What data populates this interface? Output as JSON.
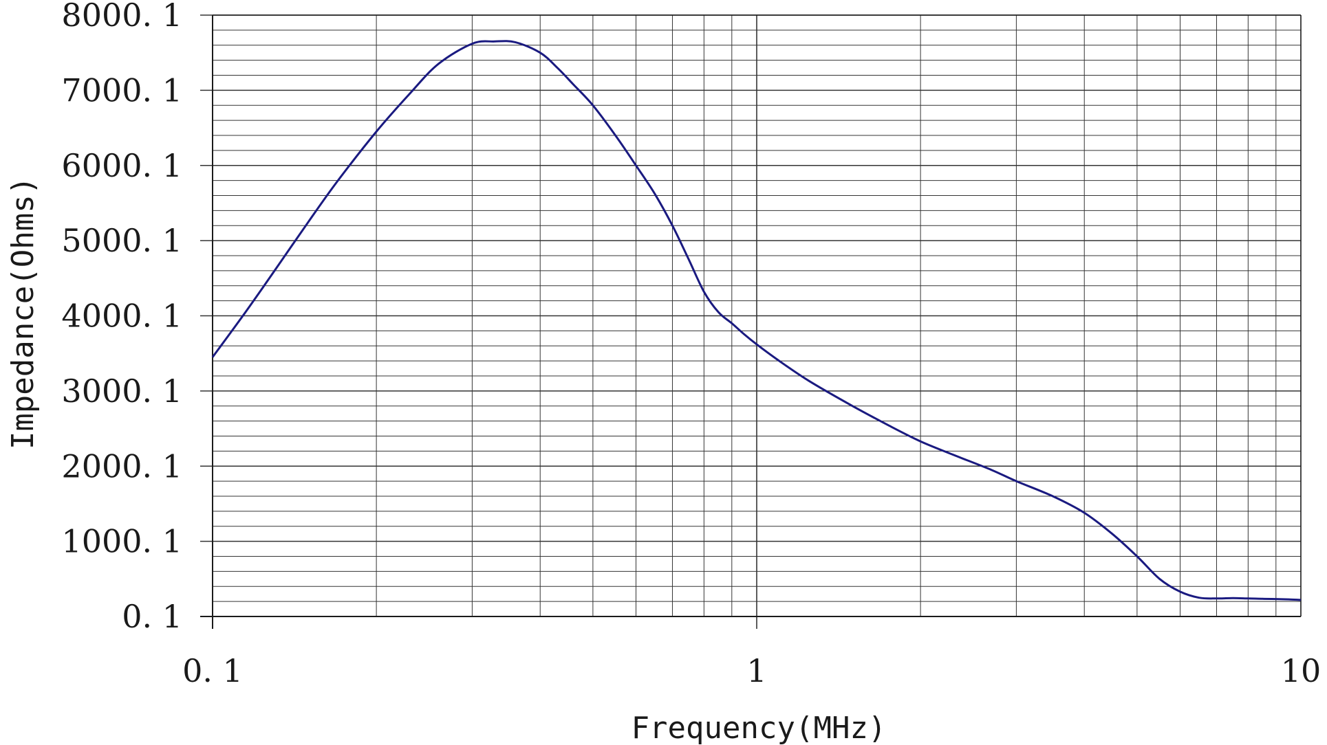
{
  "chart_data": {
    "type": "line",
    "title": "",
    "xlabel": "Frequency(MHz)",
    "ylabel": "Impedance(Ohms)",
    "x_scale": "log",
    "xlim": [
      0.1,
      10
    ],
    "ylim": [
      0.1,
      8000.1
    ],
    "x_tick_values": [
      0.1,
      1,
      10
    ],
    "x_tick_labels": [
      "0. 1",
      "1",
      "10"
    ],
    "y_tick_values": [
      0.1,
      1000.1,
      2000.1,
      3000.1,
      4000.1,
      5000.1,
      6000.1,
      7000.1,
      8000.1
    ],
    "y_tick_labels": [
      "0. 1",
      "1000. 1",
      "2000. 1",
      "3000. 1",
      "4000. 1",
      "5000. 1",
      "6000. 1",
      "7000. 1",
      "8000. 1"
    ],
    "grid": true,
    "line_color": "#1a1a80",
    "grid_color": "#333333",
    "series": [
      {
        "x": [
          0.1,
          0.115,
          0.13,
          0.15,
          0.17,
          0.2,
          0.23,
          0.26,
          0.3,
          0.33,
          0.36,
          0.4,
          0.43,
          0.46,
          0.5,
          0.55,
          0.6,
          0.65,
          0.7,
          0.75,
          0.8,
          0.85,
          0.9,
          0.95,
          1.0,
          1.1,
          1.25,
          1.5,
          1.75,
          2.0,
          2.3,
          2.7,
          3.0,
          3.5,
          4.0,
          4.5,
          5.0,
          5.5,
          6.0,
          6.5,
          7.0,
          7.5,
          8.0,
          8.5,
          9.0,
          9.5,
          10.0
        ],
        "y": [
          3450,
          4050,
          4600,
          5250,
          5800,
          6450,
          6950,
          7350,
          7620,
          7650,
          7640,
          7500,
          7300,
          7080,
          6800,
          6400,
          6000,
          5620,
          5200,
          4750,
          4320,
          4050,
          3900,
          3750,
          3620,
          3400,
          3130,
          2800,
          2540,
          2330,
          2150,
          1950,
          1800,
          1600,
          1380,
          1100,
          800,
          500,
          330,
          250,
          240,
          245,
          240,
          235,
          232,
          228,
          220
        ]
      }
    ]
  }
}
